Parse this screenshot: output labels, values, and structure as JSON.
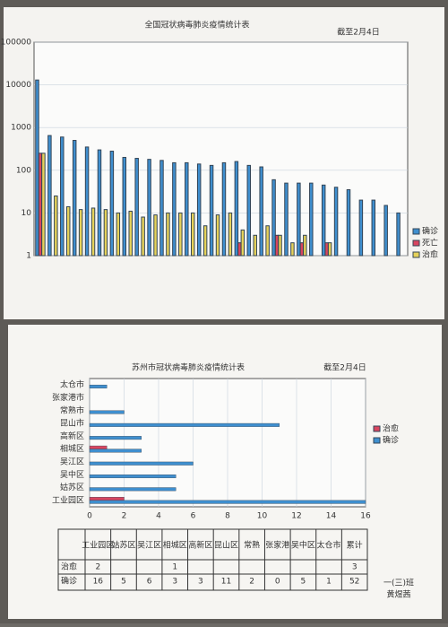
{
  "chart_data": [
    {
      "type": "bar",
      "title": "全国冠状病毒肺炎疫情统计表",
      "subtitle": "截至2月4日",
      "log_scale": true,
      "categories": [
        null,
        null,
        null,
        null,
        null,
        null,
        null,
        null,
        null,
        null,
        null,
        null,
        null,
        null,
        null,
        null,
        null,
        null,
        null,
        null,
        null,
        null,
        null,
        null,
        null,
        null,
        null,
        null,
        null,
        null
      ],
      "series": [
        {
          "name": "确诊",
          "color": "#3f8fcf",
          "values": [
            13000,
            650,
            600,
            500,
            350,
            300,
            280,
            200,
            190,
            180,
            170,
            150,
            150,
            140,
            130,
            150,
            160,
            130,
            120,
            60,
            50,
            50,
            50,
            45,
            40,
            35,
            20,
            20,
            15,
            10
          ]
        },
        {
          "name": "死亡",
          "color": "#d9455f",
          "values": [
            250,
            null,
            null,
            null,
            null,
            null,
            null,
            null,
            null,
            null,
            null,
            null,
            null,
            null,
            null,
            null,
            2,
            null,
            null,
            3,
            null,
            2,
            null,
            2,
            null,
            null,
            null,
            null,
            null,
            null
          ]
        },
        {
          "name": "治愈",
          "color": "#e6d25a",
          "values": [
            250,
            25,
            14,
            12,
            13,
            12,
            10,
            11,
            8,
            9,
            10,
            10,
            10,
            5,
            9,
            10,
            4,
            3,
            5,
            3,
            2,
            3,
            null,
            2,
            null,
            null,
            null,
            null,
            null,
            null
          ]
        }
      ],
      "ylim": [
        1,
        100000
      ],
      "yticks": [
        1,
        10,
        100,
        1000,
        10000,
        100000
      ],
      "grid": true,
      "legend": "right"
    },
    {
      "type": "barh",
      "title": "苏州市冠状病毒肺炎疫情统计表",
      "subtitle": "截至2月4日",
      "categories": [
        "太仓市",
        "张家港市",
        "常熟市",
        "昆山市",
        "高新区",
        "相城区",
        "吴江区",
        "吴中区",
        "姑苏区",
        "工业园区"
      ],
      "series": [
        {
          "name": "治愈",
          "color": "#d9455f",
          "values": [
            null,
            null,
            null,
            null,
            null,
            1,
            null,
            null,
            null,
            2
          ]
        },
        {
          "name": "确诊",
          "color": "#3f8fcf",
          "values": [
            1,
            0,
            2,
            11,
            3,
            3,
            6,
            5,
            5,
            16
          ]
        }
      ],
      "xlim": [
        0,
        16
      ],
      "xticks": [
        0,
        2,
        4,
        6,
        8,
        10,
        12,
        14,
        16
      ],
      "grid": true,
      "legend": "right"
    }
  ],
  "table": {
    "columns": [
      "工业园区",
      "姑苏区",
      "吴江区",
      "相城区",
      "高新区",
      "昆山区",
      "常熟",
      "张家港",
      "吴中区",
      "太仓市",
      "累计"
    ],
    "rows": [
      {
        "name": "治愈",
        "cells": [
          "2",
          "",
          "",
          "1",
          "",
          "",
          "",
          "",
          "",
          "",
          "3"
        ]
      },
      {
        "name": "确诊",
        "cells": [
          "16",
          "5",
          "6",
          "3",
          "3",
          "11",
          "2",
          "0",
          "5",
          "1",
          "52"
        ]
      }
    ]
  },
  "signature": {
    "class": "一(三)班",
    "name": "黄煜茜"
  }
}
